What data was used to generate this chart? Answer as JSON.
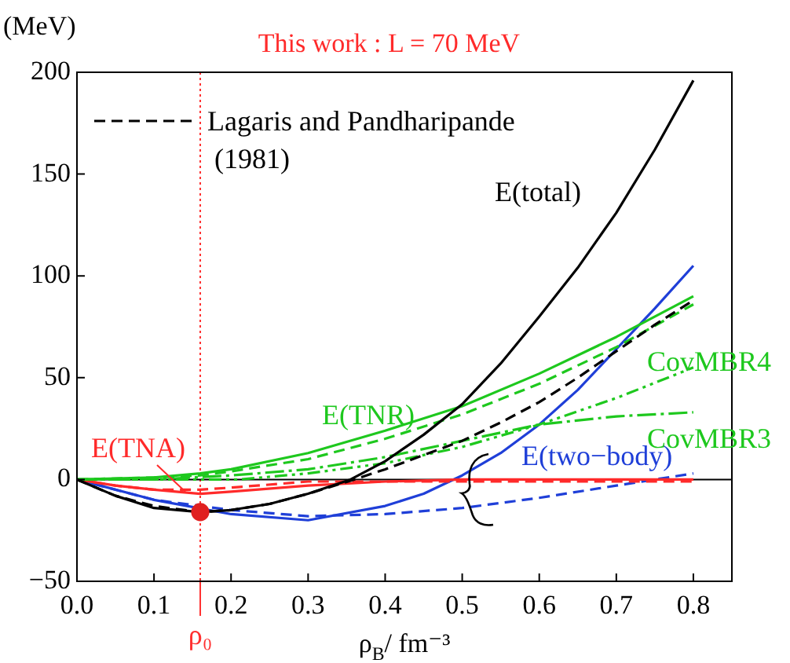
{
  "chart_data": {
    "type": "line",
    "title": "This work : L = 70 MeV",
    "xlabel": "ρ$_{B}$/ fm⁻³",
    "ylabel": "(MeV)",
    "xlim": [
      0,
      0.85
    ],
    "xticks": [
      {
        "value": 0,
        "label": "0.0"
      },
      0.1,
      0.2,
      0.3,
      0.4,
      0.5,
      0.6,
      0.7,
      0.8
    ],
    "ylim": [
      -50,
      200
    ],
    "yticks": [
      -50,
      0,
      50,
      100,
      150,
      200
    ],
    "legend": "top left",
    "marker": "none",
    "ref_lines": [
      {
        "axis": "x",
        "value": 0.16,
        "label": "ρ₀",
        "color": "#ff3030",
        "line_style": "dotted"
      },
      {
        "axis": "y",
        "value": 0,
        "color": "#000000",
        "line_style": "solid"
      }
    ],
    "series": [
      {
        "name": "E(total)",
        "color": "#000000",
        "line_style": "solid",
        "x": [
          0,
          0.05,
          0.1,
          0.16,
          0.2,
          0.25,
          0.3,
          0.355,
          0.4,
          0.45,
          0.5,
          0.55,
          0.6,
          0.65,
          0.7,
          0.75,
          0.8
        ],
        "values": [
          0,
          -8,
          -14,
          -16,
          -15,
          -12,
          -7,
          0,
          9,
          22,
          37,
          57,
          80,
          104,
          131,
          162,
          196
        ]
      },
      {
        "name": "Lagaris and Pandharipande (1981)",
        "color": "#000000",
        "line_style": "dashed",
        "x": [
          0,
          0.05,
          0.1,
          0.16,
          0.2,
          0.25,
          0.3,
          0.36,
          0.4,
          0.45,
          0.5,
          0.55,
          0.6,
          0.65,
          0.7,
          0.75,
          0.8
        ],
        "values": [
          0,
          -8,
          -13,
          -16,
          -15,
          -12,
          -7,
          0,
          5,
          12,
          19,
          28,
          38,
          50,
          63,
          76,
          88
        ]
      },
      {
        "name": "E(TNR)",
        "color": "#1ec81e",
        "line_style": "solid",
        "x": [
          0,
          0.1,
          0.16,
          0.2,
          0.3,
          0.4,
          0.5,
          0.6,
          0.7,
          0.8
        ],
        "values": [
          0,
          1,
          3,
          5,
          13,
          24,
          36,
          52,
          70,
          90
        ]
      },
      {
        "name": "CovMBR4",
        "color": "#1ec81e",
        "line_style": "dashed",
        "x": [
          0,
          0.1,
          0.16,
          0.2,
          0.3,
          0.4,
          0.5,
          0.6,
          0.7,
          0.8
        ],
        "values": [
          0,
          1,
          2,
          4,
          10,
          20,
          32,
          47,
          65,
          86
        ]
      },
      {
        "name": "CovMBR3",
        "color": "#1ec81e",
        "line_style": "dashdot",
        "x": [
          0,
          0.1,
          0.2,
          0.3,
          0.4,
          0.5,
          0.6,
          0.7,
          0.8
        ],
        "values": [
          0,
          0,
          2,
          5,
          11,
          19,
          27,
          31,
          33
        ]
      },
      {
        "color": "#1ec81e",
        "line_style": "dashdotdot",
        "x": [
          0,
          0.1,
          0.21,
          0.3,
          0.4,
          0.5,
          0.6,
          0.7,
          0.8
        ],
        "values": [
          0,
          0,
          0,
          3,
          8,
          16,
          27,
          40,
          55
        ]
      },
      {
        "name": "E(TNA)",
        "color": "#ff2a2a",
        "line_style": "solid",
        "x": [
          0,
          0.05,
          0.1,
          0.16,
          0.2,
          0.3,
          0.4,
          0.5,
          0.6,
          0.8
        ],
        "values": [
          0,
          -3,
          -5,
          -7,
          -6,
          -3,
          -1,
          0,
          0,
          0
        ]
      },
      {
        "color": "#ff2a2a",
        "line_style": "dashed",
        "x": [
          0,
          0.05,
          0.1,
          0.16,
          0.2,
          0.3,
          0.4,
          0.5,
          0.6,
          0.8
        ],
        "values": [
          0,
          -3,
          -5,
          -5,
          -4,
          -1,
          -1,
          -1,
          -1,
          -1
        ]
      },
      {
        "name": "E(two−body)",
        "color": "#1f3fd8",
        "line_style": "solid",
        "x": [
          0,
          0.1,
          0.2,
          0.3,
          0.4,
          0.45,
          0.5,
          0.55,
          0.6,
          0.65,
          0.7,
          0.75,
          0.8
        ],
        "values": [
          0,
          -10,
          -17,
          -20,
          -13,
          -7,
          2,
          13,
          27,
          44,
          64,
          84,
          105
        ]
      },
      {
        "color": "#1f3fd8",
        "line_style": "dashed",
        "x": [
          0,
          0.1,
          0.2,
          0.3,
          0.4,
          0.5,
          0.6,
          0.7,
          0.8
        ],
        "values": [
          0,
          -10,
          -15,
          -18,
          -17,
          -14,
          -9,
          -3,
          3
        ]
      },
      {
        "type": "scatter",
        "color": "#e02020",
        "marker": "circle",
        "x": [
          0.16
        ],
        "values": [
          -16
        ]
      }
    ]
  }
}
